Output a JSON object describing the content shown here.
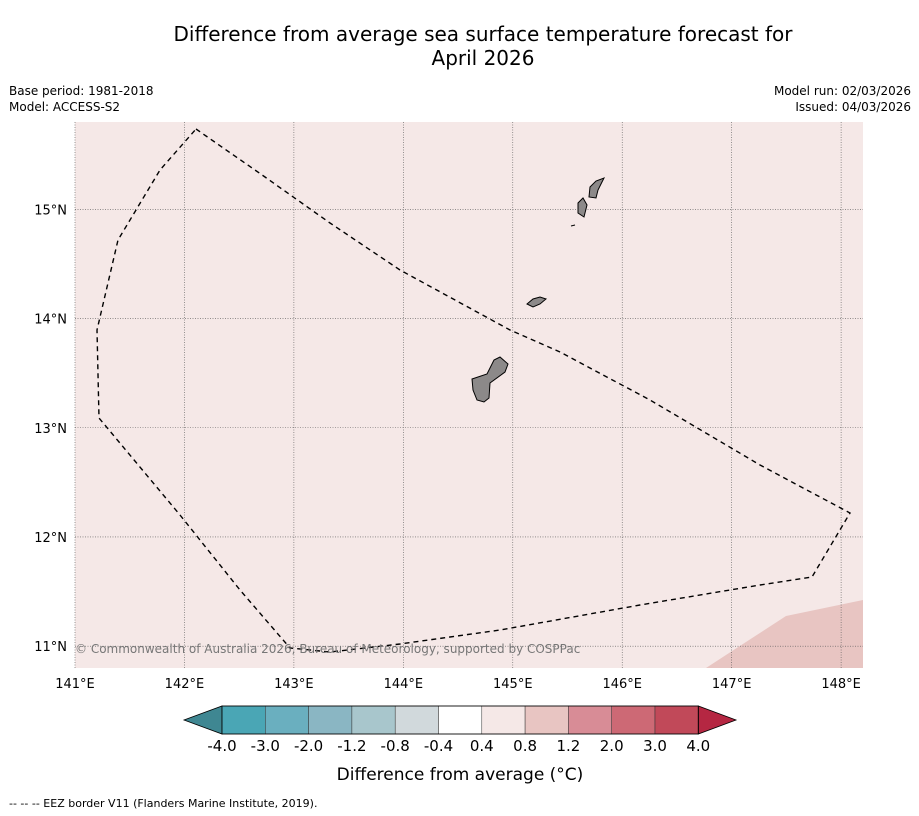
{
  "title": {
    "line1": "Difference from average sea surface temperature forecast for",
    "line2": "April 2026"
  },
  "meta": {
    "base_period": "Base period: 1981-2018",
    "model": "Model: ACCESS-S2",
    "model_run": "Model run: 02/03/2026",
    "issued": "Issued: 04/03/2026"
  },
  "map": {
    "lon_range": [
      141,
      148.2
    ],
    "lat_range": [
      10.8,
      15.8
    ],
    "lon_ticks": [
      "141°E",
      "142°E",
      "143°E",
      "144°E",
      "145°E",
      "146°E",
      "147°E",
      "148°E"
    ],
    "lat_ticks": [
      "11°N",
      "12°N",
      "13°N",
      "14°N",
      "15°N"
    ],
    "background_anomaly": "0.4 to 0.8",
    "background_color": "#f5e8e7",
    "warm_patch_color": "#e8c5c2",
    "land_color": "#8c8989",
    "copyright": "© Commonwealth of Australia 2026, Bureau of Meteorology, supported by COSPPac"
  },
  "colorbar": {
    "labels": [
      "-4.0",
      "-3.0",
      "-2.0",
      "-1.2",
      "-0.8",
      "-0.4",
      "0.4",
      "0.8",
      "1.2",
      "2.0",
      "3.0",
      "4.0"
    ],
    "colors": [
      "#3f8792",
      "#4aa6b5",
      "#6aafbf",
      "#8ab6c3",
      "#a8c6cc",
      "#d1d9dc",
      "#ffffff",
      "#f5e8e7",
      "#e8c5c2",
      "#d88c96",
      "#cd6975",
      "#c14959",
      "#b52742"
    ],
    "title": "Difference from average (°C)"
  },
  "footnote": "--  --  -- EEZ border V11 (Flanders Marine Institute, 2019)."
}
